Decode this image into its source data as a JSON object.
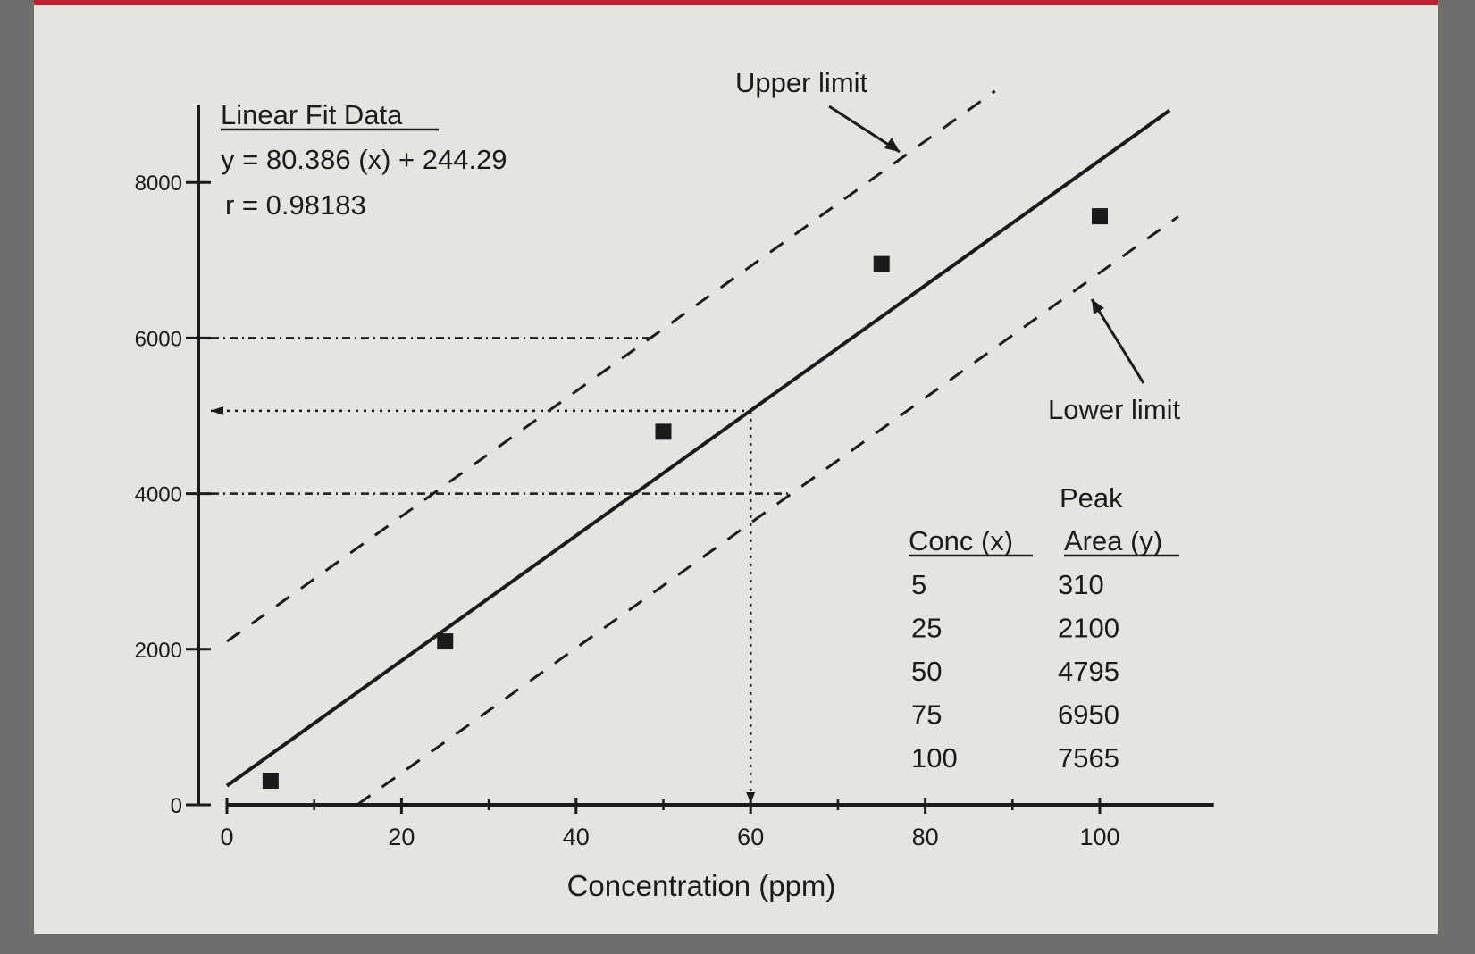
{
  "colors": {
    "frame": "#6f6e6c",
    "paper": "#e5e4e1",
    "ink": "#1b1b1b",
    "accent_bar": "#c21f2e"
  },
  "chart_data": {
    "type": "scatter",
    "title": "",
    "xlabel": "Concentration (ppm)",
    "ylabel": "",
    "xlim": [
      0,
      110
    ],
    "ylim": [
      0,
      9000
    ],
    "x_ticks": [
      "0",
      "20",
      "40",
      "60",
      "80",
      "100"
    ],
    "y_ticks": [
      "0",
      "2000",
      "4000",
      "6000",
      "8000"
    ],
    "grid": false,
    "series": [
      {
        "x": [
          5,
          25,
          50,
          75,
          100
        ],
        "y": [
          310,
          2100,
          4795,
          6950,
          7565
        ]
      }
    ],
    "fit": {
      "heading": "Linear Fit Data",
      "equation": "y = 80.386 (x) + 244.29",
      "r": "r = 0.98183",
      "slope": 80.386,
      "intercept": 244.29,
      "upper_intercept": 2100,
      "lower_intercept": -1200
    },
    "annotations": {
      "upper_label": "Upper limit",
      "lower_label": "Lower limit"
    },
    "guide_levels": {
      "y_upper": 6000,
      "y_mid": 5065,
      "y_lower": 4000,
      "x_read": 60
    },
    "table": {
      "header_top": "Peak",
      "col_x": "Conc (x)",
      "col_y": "Area (y)",
      "rows": [
        [
          "5",
          "310"
        ],
        [
          "25",
          "2100"
        ],
        [
          "50",
          "4795"
        ],
        [
          "75",
          "6950"
        ],
        [
          "100",
          "7565"
        ]
      ]
    }
  }
}
